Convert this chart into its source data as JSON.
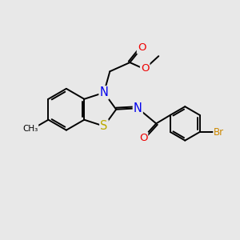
{
  "bg_color": "#e8e8e8",
  "bond_color": "#000000",
  "bond_width": 1.4,
  "atom_colors": {
    "N": "#0000ee",
    "O": "#ee0000",
    "S": "#bbaa00",
    "Br": "#cc8800",
    "C": "#000000"
  },
  "font_size": 8.5
}
